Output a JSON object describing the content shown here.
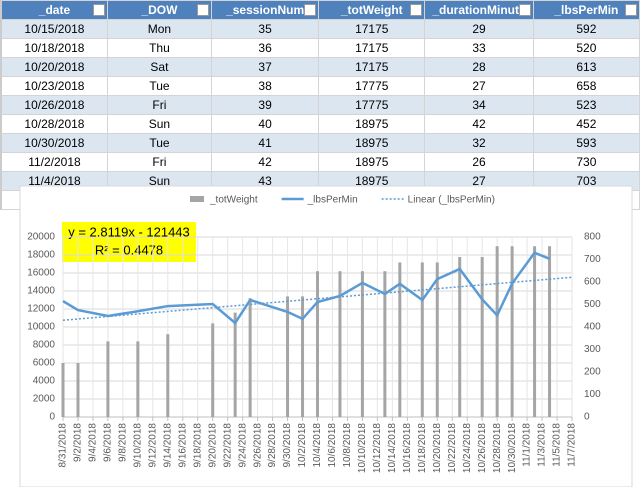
{
  "table": {
    "columns": [
      "_date",
      "_DOW",
      "_sessionNum",
      "_totWeight",
      "_durationMinute",
      "_lbsPerMin"
    ],
    "rows": [
      [
        "10/15/2018",
        "Mon",
        35,
        17175,
        29,
        592
      ],
      [
        "10/18/2018",
        "Thu",
        36,
        17175,
        33,
        520
      ],
      [
        "10/20/2018",
        "Sat",
        37,
        17175,
        28,
        613
      ],
      [
        "10/23/2018",
        "Tue",
        38,
        17775,
        27,
        658
      ],
      [
        "10/26/2018",
        "Fri",
        39,
        17775,
        34,
        523
      ],
      [
        "10/28/2018",
        "Sun",
        40,
        18975,
        42,
        452
      ],
      [
        "10/30/2018",
        "Tue",
        41,
        18975,
        32,
        593
      ],
      [
        "11/2/2018",
        "Fri",
        42,
        18975,
        26,
        730
      ],
      [
        "11/4/2018",
        "Sun",
        43,
        18975,
        27,
        703
      ]
    ]
  },
  "chart_data": {
    "type": "combo",
    "grid": true,
    "legend": "top",
    "x": [
      "8/31/2018",
      "9/2/2018",
      "9/6/2018",
      "9/10/2018",
      "9/14/2018",
      "9/20/2018",
      "9/23/2018",
      "9/25/2018",
      "9/30/2018",
      "10/2/2018",
      "10/4/2018",
      "10/7/2018",
      "10/10/2018",
      "10/13/2018",
      "10/15/2018",
      "10/18/2018",
      "10/20/2018",
      "10/23/2018",
      "10/26/2018",
      "10/28/2018",
      "10/30/2018",
      "11/2/2018",
      "11/4/2018"
    ],
    "series": [
      {
        "name": "_totWeight",
        "type": "bar",
        "color": "#a5a5a5",
        "values": [
          6000,
          6000,
          8400,
          8400,
          9200,
          10400,
          11600,
          13200,
          13400,
          13400,
          16200,
          16200,
          16200,
          16200,
          17175,
          17175,
          17175,
          17775,
          17775,
          18975,
          18975,
          18975,
          18975
        ]
      },
      {
        "name": "_lbsPerMin",
        "type": "line",
        "axis": "y2",
        "color": "#5b9bd5",
        "values": [
          515,
          475,
          449,
          470,
          493,
          502,
          418,
          520,
          467,
          436,
          511,
          538,
          596,
          547,
          592,
          520,
          613,
          658,
          523,
          452,
          593,
          730,
          703
        ]
      }
    ],
    "trend": {
      "name": "Linear (_lbsPerMin)",
      "axis": "y2",
      "color": "#5b9bd5",
      "x": [
        "8/31/2018",
        "11/7/2018"
      ],
      "values": [
        430,
        621
      ]
    },
    "annotations": [
      "y = 2.8119x - 121443",
      "R² = 0.4478"
    ],
    "xlim": [
      "8/31/2018",
      "11/7/2018"
    ],
    "xticks": [
      "8/31/2018",
      "9/2/2018",
      "9/4/2018",
      "9/6/2018",
      "9/8/2018",
      "9/10/2018",
      "9/12/2018",
      "9/14/2018",
      "9/16/2018",
      "9/18/2018",
      "9/20/2018",
      "9/22/2018",
      "9/24/2018",
      "9/26/2018",
      "9/28/2018",
      "9/30/2018",
      "10/2/2018",
      "10/4/2018",
      "10/6/2018",
      "10/8/2018",
      "10/10/2018",
      "10/12/2018",
      "10/14/2018",
      "10/16/2018",
      "10/18/2018",
      "10/20/2018",
      "10/22/2018",
      "10/24/2018",
      "10/26/2018",
      "10/28/2018",
      "10/30/2018",
      "11/1/2018",
      "11/3/2018",
      "11/5/2018",
      "11/7/2018"
    ],
    "ylim": [
      0,
      20000
    ],
    "yticks": [
      0,
      2000,
      4000,
      6000,
      8000,
      10000,
      12000,
      14000,
      16000,
      18000,
      20000
    ],
    "y2lim": [
      0,
      800
    ],
    "y2ticks": [
      0,
      100,
      200,
      300,
      400,
      500,
      600,
      700,
      800
    ]
  }
}
